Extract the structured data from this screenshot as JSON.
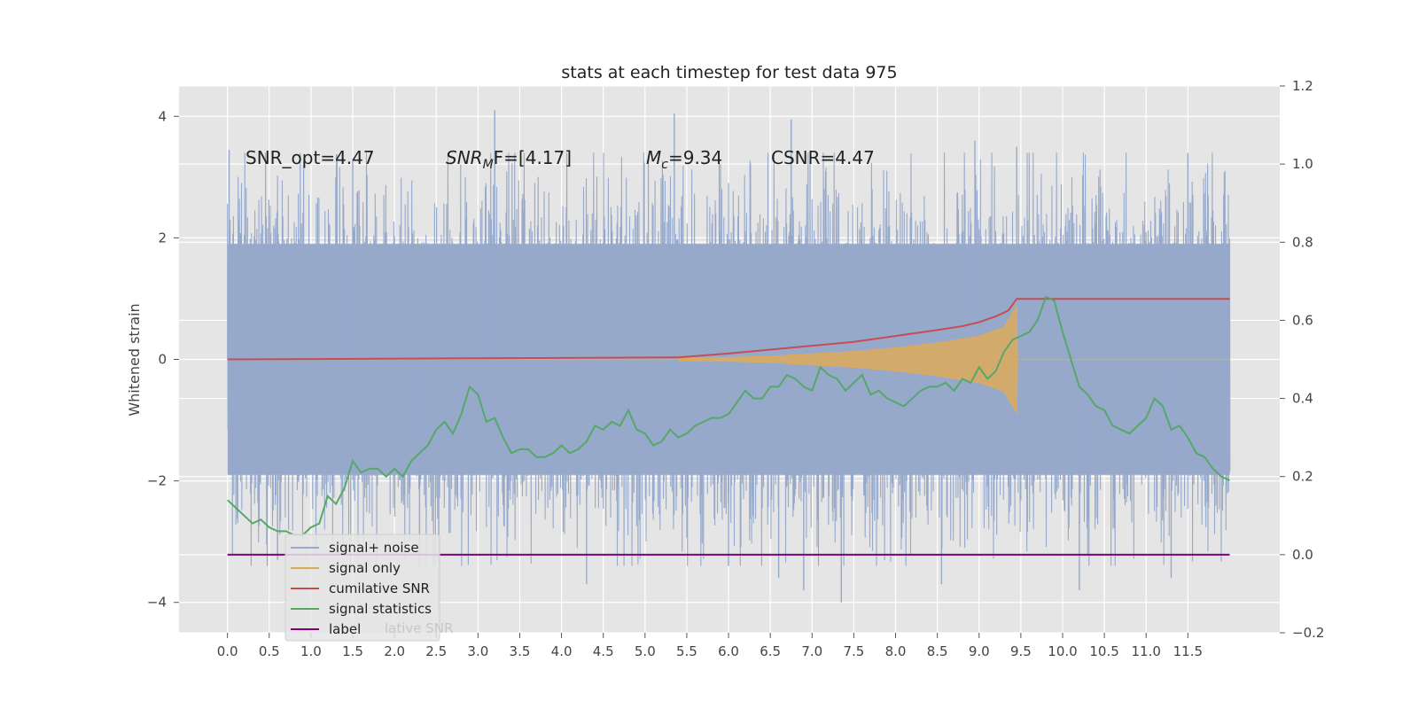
{
  "chart_data": {
    "type": "line",
    "title": "stats at each timestep for test data 975",
    "ylabel": "Whitened strain",
    "xlabel": "",
    "xlim": [
      -0.58,
      12.6
    ],
    "ylim": [
      -4.5,
      4.5
    ],
    "y2lim": [
      -0.2,
      1.2
    ],
    "grid": true,
    "legend_position": "lower-left",
    "x_ticks": [
      "0.0",
      "0.5",
      "1.0",
      "1.5",
      "2.0",
      "2.5",
      "3.0",
      "3.5",
      "4.0",
      "4.5",
      "5.0",
      "5.5",
      "6.0",
      "6.5",
      "7.0",
      "7.5",
      "8.0",
      "8.5",
      "9.0",
      "9.5",
      "10.0",
      "10.5",
      "11.0",
      "11.5"
    ],
    "y_ticks": [
      "4",
      "2",
      "0",
      "−2",
      "−4"
    ],
    "y2_ticks": [
      "1.2",
      "1.0",
      "0.8",
      "0.6",
      "0.4",
      "0.2",
      "0.0",
      "−0.2"
    ],
    "annotations": {
      "snr_opt": "SNR_opt=4.47",
      "snr_mf_main": "SNR",
      "snr_mf_sub": "M",
      "snr_mf_rest": "F=[4.17]",
      "mc_main": "M",
      "mc_sub": "c",
      "mc_rest": "=9.34",
      "csnr": "CSNR=4.47"
    },
    "series": [
      {
        "name": "signal+ noise",
        "axis": "left",
        "color": "#96a9cb",
        "description_only": false,
        "x_range": [
          0,
          12.0
        ],
        "y_range": [
          -4.1,
          4.1
        ],
        "spike_points": [
          [
            0.02,
            3.45
          ],
          [
            0.6,
            -3.3
          ],
          [
            1.5,
            3.3
          ],
          [
            2.3,
            -3.4
          ],
          [
            2.53,
            -4.1
          ],
          [
            3.2,
            4.1
          ],
          [
            4.3,
            -3.7
          ],
          [
            5.35,
            4.05
          ],
          [
            6.0,
            -3.4
          ],
          [
            6.6,
            -3.6
          ],
          [
            6.75,
            3.95
          ],
          [
            6.9,
            -3.8
          ],
          [
            7.35,
            -4.0
          ],
          [
            8.55,
            -3.7
          ],
          [
            8.95,
            3.6
          ],
          [
            9.45,
            3.5
          ],
          [
            10.2,
            -3.8
          ],
          [
            11.3,
            -3.6
          ],
          [
            11.5,
            3.4
          ]
        ]
      },
      {
        "name": "signal only",
        "axis": "left",
        "color": "#ddaa5a",
        "envelope": [
          [
            5.4,
            0.02
          ],
          [
            6.0,
            0.03
          ],
          [
            6.5,
            0.05
          ],
          [
            7.0,
            0.09
          ],
          [
            7.5,
            0.13
          ],
          [
            8.0,
            0.19
          ],
          [
            8.5,
            0.27
          ],
          [
            9.0,
            0.38
          ],
          [
            9.3,
            0.53
          ],
          [
            9.45,
            0.88
          ],
          [
            9.46,
            0.0
          ],
          [
            12.0,
            0.0
          ]
        ]
      },
      {
        "name": "cumilative SNR",
        "axis": "right",
        "color": "#c44e52",
        "points": [
          [
            0,
            0.5
          ],
          [
            5.4,
            0.505
          ],
          [
            6.0,
            0.515
          ],
          [
            6.5,
            0.525
          ],
          [
            7.0,
            0.535
          ],
          [
            7.5,
            0.545
          ],
          [
            8.0,
            0.56
          ],
          [
            8.5,
            0.575
          ],
          [
            8.8,
            0.585
          ],
          [
            9.0,
            0.595
          ],
          [
            9.2,
            0.61
          ],
          [
            9.35,
            0.625
          ],
          [
            9.45,
            0.655
          ],
          [
            12.0,
            0.655
          ]
        ]
      },
      {
        "name": "signal statistics",
        "axis": "right",
        "color": "#55a868",
        "points": [
          [
            0,
            0.14
          ],
          [
            0.1,
            0.12
          ],
          [
            0.2,
            0.1
          ],
          [
            0.3,
            0.08
          ],
          [
            0.4,
            0.09
          ],
          [
            0.5,
            0.07
          ],
          [
            0.6,
            0.06
          ],
          [
            0.7,
            0.06
          ],
          [
            0.8,
            0.05
          ],
          [
            0.9,
            0.05
          ],
          [
            1.0,
            0.07
          ],
          [
            1.1,
            0.08
          ],
          [
            1.2,
            0.15
          ],
          [
            1.3,
            0.13
          ],
          [
            1.4,
            0.17
          ],
          [
            1.5,
            0.24
          ],
          [
            1.6,
            0.21
          ],
          [
            1.7,
            0.22
          ],
          [
            1.8,
            0.22
          ],
          [
            1.9,
            0.2
          ],
          [
            2.0,
            0.22
          ],
          [
            2.1,
            0.2
          ],
          [
            2.2,
            0.24
          ],
          [
            2.3,
            0.26
          ],
          [
            2.4,
            0.28
          ],
          [
            2.5,
            0.32
          ],
          [
            2.6,
            0.34
          ],
          [
            2.7,
            0.31
          ],
          [
            2.8,
            0.36
          ],
          [
            2.9,
            0.43
          ],
          [
            3.0,
            0.41
          ],
          [
            3.1,
            0.34
          ],
          [
            3.2,
            0.35
          ],
          [
            3.3,
            0.3
          ],
          [
            3.4,
            0.26
          ],
          [
            3.5,
            0.27
          ],
          [
            3.6,
            0.27
          ],
          [
            3.7,
            0.25
          ],
          [
            3.8,
            0.25
          ],
          [
            3.9,
            0.26
          ],
          [
            4.0,
            0.28
          ],
          [
            4.1,
            0.26
          ],
          [
            4.2,
            0.27
          ],
          [
            4.3,
            0.29
          ],
          [
            4.4,
            0.33
          ],
          [
            4.5,
            0.32
          ],
          [
            4.6,
            0.34
          ],
          [
            4.7,
            0.33
          ],
          [
            4.8,
            0.37
          ],
          [
            4.9,
            0.32
          ],
          [
            5.0,
            0.31
          ],
          [
            5.1,
            0.28
          ],
          [
            5.2,
            0.29
          ],
          [
            5.3,
            0.32
          ],
          [
            5.4,
            0.3
          ],
          [
            5.5,
            0.31
          ],
          [
            5.6,
            0.33
          ],
          [
            5.7,
            0.34
          ],
          [
            5.8,
            0.35
          ],
          [
            5.9,
            0.35
          ],
          [
            6.0,
            0.36
          ],
          [
            6.1,
            0.39
          ],
          [
            6.2,
            0.42
          ],
          [
            6.3,
            0.4
          ],
          [
            6.4,
            0.4
          ],
          [
            6.5,
            0.43
          ],
          [
            6.6,
            0.43
          ],
          [
            6.7,
            0.46
          ],
          [
            6.8,
            0.45
          ],
          [
            6.9,
            0.43
          ],
          [
            7.0,
            0.42
          ],
          [
            7.1,
            0.48
          ],
          [
            7.2,
            0.46
          ],
          [
            7.3,
            0.45
          ],
          [
            7.4,
            0.42
          ],
          [
            7.5,
            0.44
          ],
          [
            7.6,
            0.46
          ],
          [
            7.7,
            0.41
          ],
          [
            7.8,
            0.42
          ],
          [
            7.9,
            0.4
          ],
          [
            8.0,
            0.39
          ],
          [
            8.1,
            0.38
          ],
          [
            8.2,
            0.4
          ],
          [
            8.3,
            0.42
          ],
          [
            8.4,
            0.43
          ],
          [
            8.5,
            0.43
          ],
          [
            8.6,
            0.44
          ],
          [
            8.7,
            0.42
          ],
          [
            8.8,
            0.45
          ],
          [
            8.9,
            0.44
          ],
          [
            9.0,
            0.48
          ],
          [
            9.1,
            0.45
          ],
          [
            9.2,
            0.47
          ],
          [
            9.3,
            0.52
          ],
          [
            9.4,
            0.55
          ],
          [
            9.5,
            0.56
          ],
          [
            9.6,
            0.57
          ],
          [
            9.7,
            0.6
          ],
          [
            9.8,
            0.66
          ],
          [
            9.9,
            0.65
          ],
          [
            10.0,
            0.57
          ],
          [
            10.1,
            0.5
          ],
          [
            10.2,
            0.43
          ],
          [
            10.3,
            0.41
          ],
          [
            10.4,
            0.38
          ],
          [
            10.5,
            0.37
          ],
          [
            10.6,
            0.33
          ],
          [
            10.7,
            0.32
          ],
          [
            10.8,
            0.31
          ],
          [
            10.9,
            0.33
          ],
          [
            11.0,
            0.35
          ],
          [
            11.1,
            0.4
          ],
          [
            11.2,
            0.38
          ],
          [
            11.3,
            0.32
          ],
          [
            11.4,
            0.33
          ],
          [
            11.5,
            0.3
          ],
          [
            11.6,
            0.26
          ],
          [
            11.7,
            0.25
          ],
          [
            11.8,
            0.22
          ],
          [
            11.9,
            0.2
          ],
          [
            12.0,
            0.19
          ]
        ]
      },
      {
        "name": "label",
        "axis": "right",
        "color": "#800080",
        "points": [
          [
            0,
            0.0
          ],
          [
            12.0,
            0.0
          ]
        ]
      }
    ],
    "legend": [
      "signal+ noise",
      "signal only",
      "cumilative SNR",
      "signal statistics",
      "label"
    ],
    "legend_ghost_text": "lative SNR"
  }
}
